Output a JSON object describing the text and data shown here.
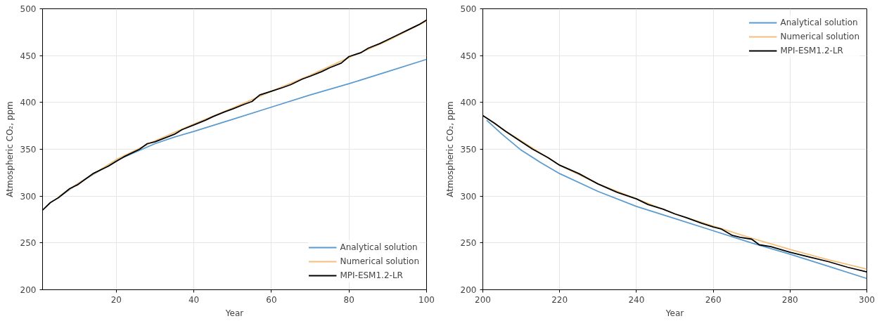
{
  "chart_data": [
    {
      "type": "line",
      "xlabel": "Year",
      "ylabel": "Atmospheric CO₂, ppm",
      "xlim": [
        1,
        100
      ],
      "ylim": [
        200,
        500
      ],
      "xticks": [
        20,
        40,
        60,
        80,
        100
      ],
      "yticks": [
        200,
        250,
        300,
        350,
        400,
        450,
        500
      ],
      "grid": true,
      "legend": "bottom right",
      "series": [
        {
          "name": "Analytical solution",
          "color": "#5b9bd0",
          "x": [
            5,
            10,
            20,
            25,
            30,
            35,
            40,
            50,
            60,
            70,
            80,
            90,
            100
          ],
          "values": [
            298,
            313,
            338,
            347,
            356,
            363,
            369,
            382,
            395,
            408,
            420,
            433,
            446
          ]
        },
        {
          "name": "Numerical solution",
          "color": "#f3c07c",
          "x": [
            5,
            10,
            20,
            30,
            40,
            50,
            60,
            70,
            80,
            90,
            100
          ],
          "values": [
            299,
            313,
            339,
            359,
            377,
            394,
            412,
            429,
            448,
            466,
            487
          ]
        },
        {
          "name": "MPI-ESM1.2-LR",
          "color": "#000000",
          "x": [
            1,
            3,
            5,
            8,
            10,
            14,
            18,
            20,
            22,
            26,
            28,
            30,
            35,
            37,
            40,
            43,
            45,
            48,
            50,
            53,
            55,
            57,
            60,
            63,
            65,
            68,
            70,
            73,
            75,
            78,
            80,
            83,
            85,
            88,
            90,
            93,
            95,
            98,
            100
          ],
          "values": [
            285,
            293,
            298,
            308,
            312,
            324,
            332,
            337,
            342,
            350,
            356,
            358,
            366,
            371,
            376,
            381,
            385,
            390,
            393,
            398,
            401,
            408,
            412,
            416,
            419,
            425,
            428,
            433,
            437,
            442,
            449,
            453,
            458,
            463,
            467,
            473,
            477,
            483,
            488
          ]
        }
      ]
    },
    {
      "type": "line",
      "xlabel": "Year",
      "ylabel": "Atmospheric CO₂, ppm",
      "xlim": [
        200,
        300
      ],
      "ylim": [
        200,
        500
      ],
      "xticks": [
        200,
        220,
        240,
        260,
        280,
        300
      ],
      "yticks": [
        200,
        250,
        300,
        350,
        400,
        450,
        500
      ],
      "grid": true,
      "legend": "top right",
      "series": [
        {
          "name": "Analytical solution",
          "color": "#5b9bd0",
          "x": [
            201,
            205,
            210,
            215,
            220,
            230,
            240,
            250,
            260,
            270,
            280,
            290,
            300
          ],
          "values": [
            381,
            366,
            349,
            336,
            324,
            305,
            289,
            276,
            263,
            250,
            238,
            225,
            212
          ]
        },
        {
          "name": "Numerical solution",
          "color": "#f3c07c",
          "x": [
            200,
            205,
            220,
            230,
            240,
            250,
            260,
            270,
            280,
            290,
            300
          ],
          "values": [
            386,
            372,
            333,
            313,
            297,
            281,
            268,
            255,
            243,
            232,
            222
          ]
        },
        {
          "name": "MPI-ESM1.2-LR",
          "color": "#000000",
          "x": [
            200,
            203,
            206,
            210,
            213,
            217,
            220,
            225,
            230,
            235,
            240,
            243,
            247,
            250,
            253,
            257,
            260,
            262,
            265,
            267,
            270,
            272,
            275,
            280,
            285,
            290,
            295,
            300
          ],
          "values": [
            386,
            378,
            369,
            358,
            350,
            341,
            333,
            324,
            313,
            304,
            297,
            291,
            286,
            281,
            277,
            271,
            267,
            265,
            258,
            256,
            254,
            248,
            246,
            240,
            235,
            230,
            224,
            219
          ]
        }
      ]
    }
  ]
}
